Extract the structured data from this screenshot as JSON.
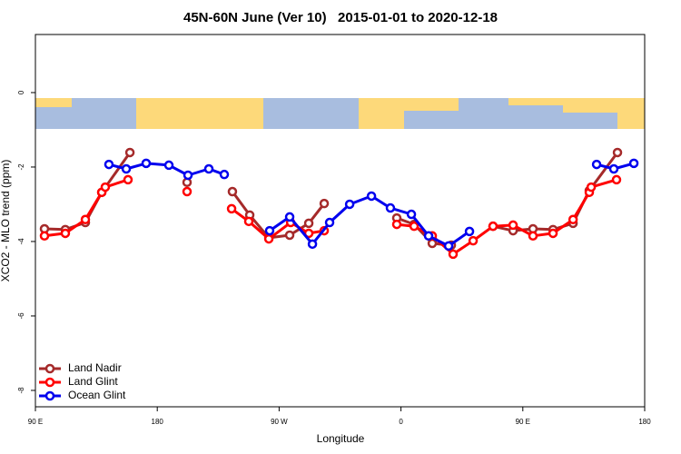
{
  "chart_data": {
    "type": "line",
    "title": "45N-60N June (Ver 10)   2015-01-01 to 2020-12-18",
    "x_label": "Longitude",
    "y_label": "XCO2 - MLO trend (ppm)",
    "xlim": [
      90,
      540
    ],
    "ylim": [
      -8.44,
      1.56
    ],
    "xticks": [
      {
        "value": 90,
        "label": "90 E"
      },
      180,
      {
        "value": 270,
        "label": "90 W"
      },
      {
        "value": 360,
        "label": "0"
      },
      {
        "value": 450,
        "label": "90 E"
      },
      {
        "value": 540,
        "label": "180"
      }
    ],
    "yticks": [
      0,
      -2,
      -4,
      -6,
      -8
    ],
    "legend": "bottom-left",
    "series": [
      {
        "name": "Land Nadir",
        "color": "#a52a2a",
        "x": [
          96.7,
          112.1,
          126.9,
          139.0,
          159.8,
          null,
          202.0,
          null,
          235.5,
          248.3,
          262.4,
          277.8,
          291.9,
          303.3,
          null,
          356.9,
          369.7,
          383.1,
          397.2,
          null,
          428.0,
          442.8,
          457.5,
          472.3,
          487.1,
          499.1,
          519.9
        ],
        "values": [
          -3.66,
          -3.68,
          -3.49,
          -2.68,
          -1.61,
          null,
          -2.41,
          null,
          -2.66,
          -3.29,
          -3.9,
          -3.83,
          -3.51,
          -2.98,
          null,
          -3.37,
          -3.54,
          -4.05,
          -4.1,
          null,
          -3.59,
          -3.71,
          -3.66,
          -3.68,
          -3.51,
          -2.63,
          -1.61
        ]
      },
      {
        "name": "Land Glint",
        "color": "#ff0000",
        "x": [
          96.7,
          112.1,
          126.9,
          139.0,
          141.6,
          158.4,
          null,
          202.0,
          null,
          234.9,
          247.6,
          262.4,
          278.5,
          291.9,
          303.3,
          null,
          356.9,
          369.7,
          383.1,
          398.5,
          413.3,
          428.0,
          442.8,
          457.5,
          472.3,
          487.1,
          499.1,
          500.5,
          519.2
        ],
        "values": [
          -3.85,
          -3.78,
          -3.41,
          -2.68,
          -2.54,
          -2.34,
          null,
          -2.66,
          null,
          -3.12,
          -3.46,
          -3.93,
          -3.49,
          -3.78,
          -3.71,
          null,
          -3.54,
          -3.59,
          -3.85,
          -4.34,
          -3.98,
          -3.59,
          -3.56,
          -3.85,
          -3.78,
          -3.41,
          -2.68,
          -2.54,
          -2.34
        ]
      },
      {
        "name": "Ocean Glint",
        "color": "#0000ee",
        "x": [
          144.3,
          157.1,
          171.8,
          188.6,
          202.7,
          218.1,
          229.5,
          null,
          263.0,
          277.8,
          294.6,
          307.3,
          322.1,
          338.2,
          352.2,
          367.7,
          380.4,
          395.2,
          410.6,
          null,
          504.5,
          517.2,
          532.0
        ],
        "values": [
          -1.93,
          -2.05,
          -1.9,
          -1.95,
          -2.22,
          -2.05,
          -2.2,
          null,
          -3.71,
          -3.34,
          -4.07,
          -3.49,
          -3.0,
          -2.78,
          -3.1,
          -3.27,
          -3.85,
          -4.12,
          -3.73,
          null,
          -1.93,
          -2.05,
          -1.9
        ]
      }
    ]
  }
}
